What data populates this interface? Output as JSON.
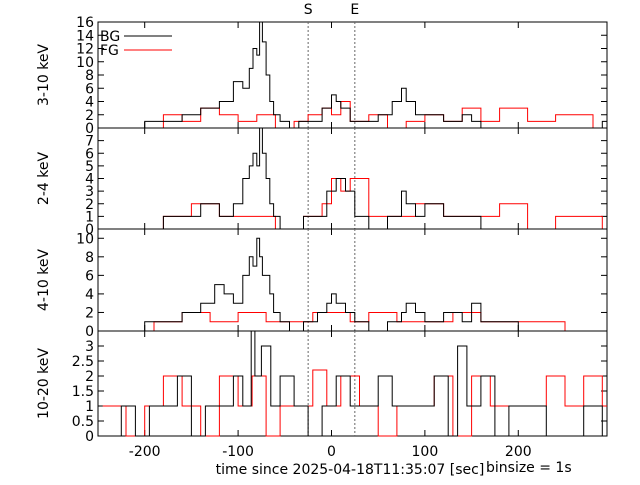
{
  "chart_data": {
    "type": "line",
    "binsize_label": "binsize = 1s",
    "xlabel": "time since 2025-04-18T11:35:07 [sec]",
    "xlim": [
      -250,
      295
    ],
    "xticks": [
      -200,
      -100,
      0,
      100,
      200
    ],
    "markers": [
      {
        "label": "S",
        "x": -25
      },
      {
        "label": "E",
        "x": 25
      }
    ],
    "legend": {
      "placement": "top-left",
      "entries": [
        {
          "name": "BG",
          "color": "#000000"
        },
        {
          "name": "FG",
          "color": "#ff0000"
        }
      ]
    },
    "panels": [
      {
        "ylabel": "3-10 keV",
        "ylim": [
          0,
          16
        ],
        "yticks": [
          0,
          2,
          4,
          6,
          8,
          10,
          12,
          14,
          16
        ],
        "series": [
          {
            "name": "BG",
            "color": "#000000",
            "x": [
              -230,
              -200,
              -180,
              -160,
              -140,
              -120,
              -105,
              -95,
              -88,
              -84,
              -80,
              -77,
              -74,
              -70,
              -66,
              -62,
              -55,
              -45,
              -35,
              -20,
              -10,
              0,
              5,
              10,
              20,
              35,
              50,
              65,
              75,
              80,
              90,
              100,
              120,
              140,
              150,
              160,
              180,
              200,
              230,
              260,
              290
            ],
            "y": [
              0,
              1,
              1,
              2,
              3,
              4,
              7,
              6,
              9,
              12,
              11,
              16,
              13,
              8,
              4,
              2,
              1,
              0,
              1,
              1,
              3,
              5,
              4,
              3,
              1,
              1,
              2,
              4,
              6,
              4,
              2,
              2,
              1,
              2,
              1,
              0,
              0,
              0,
              0,
              0,
              1
            ]
          },
          {
            "name": "FG",
            "color": "#ff0000",
            "x": [
              -230,
              -180,
              -160,
              -140,
              -120,
              -100,
              -80,
              -60,
              -40,
              -25,
              -10,
              0,
              10,
              20,
              40,
              60,
              80,
              100,
              120,
              140,
              160,
              180,
              210,
              240,
              280
            ],
            "y": [
              0,
              2,
              1,
              3,
              2,
              1,
              2,
              0,
              1,
              2,
              3,
              2,
              4,
              1,
              2,
              0,
              1,
              2,
              1,
              3,
              1,
              3,
              1,
              2,
              0
            ]
          }
        ]
      },
      {
        "ylabel": "2-4 keV",
        "ylim": [
          0,
          8
        ],
        "yticks": [
          0,
          1,
          2,
          3,
          4,
          5,
          6,
          7
        ],
        "series": [
          {
            "name": "BG",
            "color": "#000000",
            "x": [
              -230,
              -200,
              -180,
              -160,
              -140,
              -120,
              -105,
              -95,
              -88,
              -84,
              -80,
              -77,
              -74,
              -70,
              -66,
              -62,
              -55,
              -45,
              -30,
              -15,
              -5,
              5,
              15,
              25,
              40,
              60,
              75,
              80,
              90,
              100,
              120,
              140,
              160,
              200,
              240,
              290
            ],
            "y": [
              0,
              0,
              1,
              1,
              2,
              1,
              2,
              4,
              5,
              6,
              5,
              8,
              6,
              4,
              2,
              1,
              0,
              0,
              1,
              1,
              3,
              4,
              3,
              1,
              0,
              1,
              3,
              2,
              1,
              2,
              1,
              1,
              0,
              0,
              0,
              0
            ]
          },
          {
            "name": "FG",
            "color": "#ff0000",
            "x": [
              -230,
              -180,
              -150,
              -120,
              -90,
              -60,
              -30,
              -10,
              0,
              10,
              20,
              40,
              60,
              90,
              120,
              150,
              180,
              210,
              240,
              290
            ],
            "y": [
              0,
              1,
              2,
              1,
              1,
              0,
              1,
              2,
              4,
              3,
              4,
              1,
              1,
              2,
              1,
              1,
              2,
              0,
              1,
              0
            ]
          }
        ]
      },
      {
        "ylabel": "4-10 keV",
        "ylim": [
          0,
          11
        ],
        "yticks": [
          0,
          2,
          4,
          6,
          8,
          10
        ],
        "series": [
          {
            "name": "BG",
            "color": "#000000",
            "x": [
              -230,
              -200,
              -180,
              -160,
              -140,
              -125,
              -115,
              -105,
              -95,
              -88,
              -84,
              -80,
              -77,
              -74,
              -70,
              -66,
              -62,
              -55,
              -45,
              -30,
              -15,
              -5,
              0,
              5,
              15,
              25,
              40,
              60,
              75,
              80,
              90,
              100,
              120,
              140,
              150,
              160,
              200,
              240,
              290
            ],
            "y": [
              0,
              1,
              1,
              2,
              3,
              5,
              4,
              3,
              6,
              8,
              7,
              10,
              8,
              6,
              6,
              4,
              2,
              1,
              0,
              1,
              2,
              3,
              4,
              3,
              2,
              1,
              0,
              1,
              2,
              3,
              2,
              1,
              2,
              1,
              3,
              1,
              0,
              0,
              0
            ]
          },
          {
            "name": "FG",
            "color": "#ff0000",
            "x": [
              -230,
              -190,
              -160,
              -130,
              -100,
              -70,
              -40,
              -20,
              0,
              20,
              40,
              70,
              100,
              130,
              160,
              190,
              220,
              250,
              290
            ],
            "y": [
              0,
              1,
              2,
              1,
              2,
              1,
              1,
              2,
              2,
              1,
              2,
              1,
              1,
              2,
              1,
              1,
              1,
              0,
              0
            ]
          }
        ]
      },
      {
        "ylabel": "10-20 keV",
        "ylim": [
          0,
          3.5
        ],
        "yticks": [
          0,
          0.5,
          1,
          1.5,
          2,
          2.5,
          3
        ],
        "series": [
          {
            "name": "BG",
            "color": "#000000",
            "x": [
              -245,
              -225,
              -210,
              -195,
              -180,
              -165,
              -150,
              -135,
              -120,
              -105,
              -95,
              -86,
              -82,
              -75,
              -65,
              -55,
              -40,
              -25,
              -10,
              5,
              20,
              35,
              50,
              65,
              80,
              95,
              110,
              125,
              135,
              145,
              160,
              175,
              190,
              210,
              230,
              250,
              270,
              290
            ],
            "y": [
              0,
              1,
              0,
              1,
              1,
              2,
              0,
              1,
              1,
              2,
              1,
              3.5,
              2,
              3,
              1,
              2,
              1,
              0,
              1,
              2,
              1,
              1,
              2,
              1,
              1,
              1,
              2,
              0,
              3,
              1,
              2,
              0,
              1,
              1,
              0,
              0,
              1,
              0
            ]
          },
          {
            "name": "FG",
            "color": "#ff0000",
            "x": [
              -245,
              -220,
              -200,
              -180,
              -160,
              -140,
              -120,
              -100,
              -85,
              -70,
              -55,
              -40,
              -25,
              -20,
              -5,
              10,
              30,
              50,
              70,
              90,
              110,
              130,
              150,
              170,
              190,
              210,
              230,
              250,
              270,
              290
            ],
            "y": [
              1,
              0,
              1,
              2,
              1,
              0,
              2,
              1,
              2,
              0,
              1,
              1,
              1,
              2.2,
              1,
              2,
              1,
              0,
              1,
              1,
              2,
              0,
              2,
              1,
              1,
              1,
              2,
              1,
              2,
              1
            ]
          }
        ]
      }
    ]
  }
}
